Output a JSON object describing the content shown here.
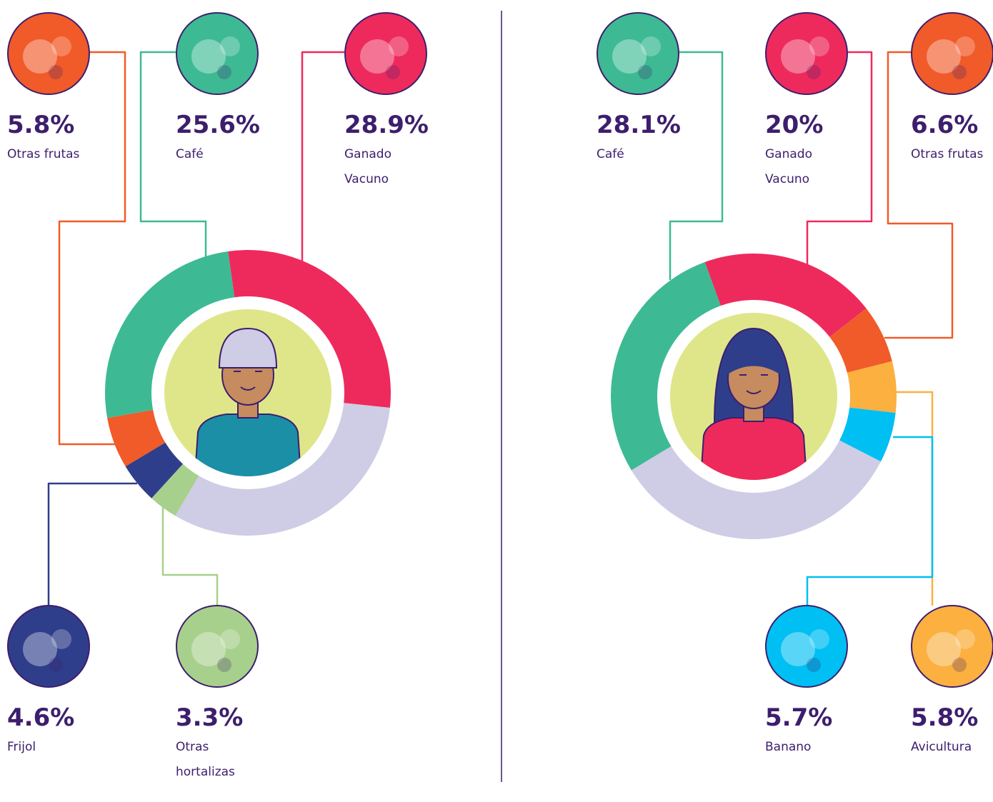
{
  "chart_data": [
    {
      "type": "donut",
      "categories": [
        "Ganado Vacuno",
        null,
        "Otras hortalizas",
        "Frijol",
        "Otras frutas",
        "Café"
      ],
      "values": [
        28.9,
        31.8,
        3.3,
        4.6,
        5.8,
        25.6
      ],
      "value_labels": [
        "28.9%",
        null,
        "3.3%",
        "4.6%",
        "5.8%",
        "25.6%"
      ],
      "colors": [
        "#ee2a5d",
        "#cfcce6",
        "#a8d08d",
        "#2f3e8a",
        "#f15a29",
        "#3dba93"
      ]
    },
    {
      "type": "donut",
      "categories": [
        "Ganado Vacuno",
        "Otras frutas",
        "Avicultura",
        "Banano",
        null,
        "Café"
      ],
      "values": [
        20,
        6.6,
        5.8,
        5.7,
        33.8,
        28.1
      ],
      "value_labels": [
        "20%",
        "6.6%",
        "5.8%",
        "5.7%",
        null,
        "28.1%"
      ],
      "colors": [
        "#ee2a5d",
        "#f15a29",
        "#fbb040",
        "#00bff3",
        "#cfcce6",
        "#3dba93"
      ]
    }
  ]
}
